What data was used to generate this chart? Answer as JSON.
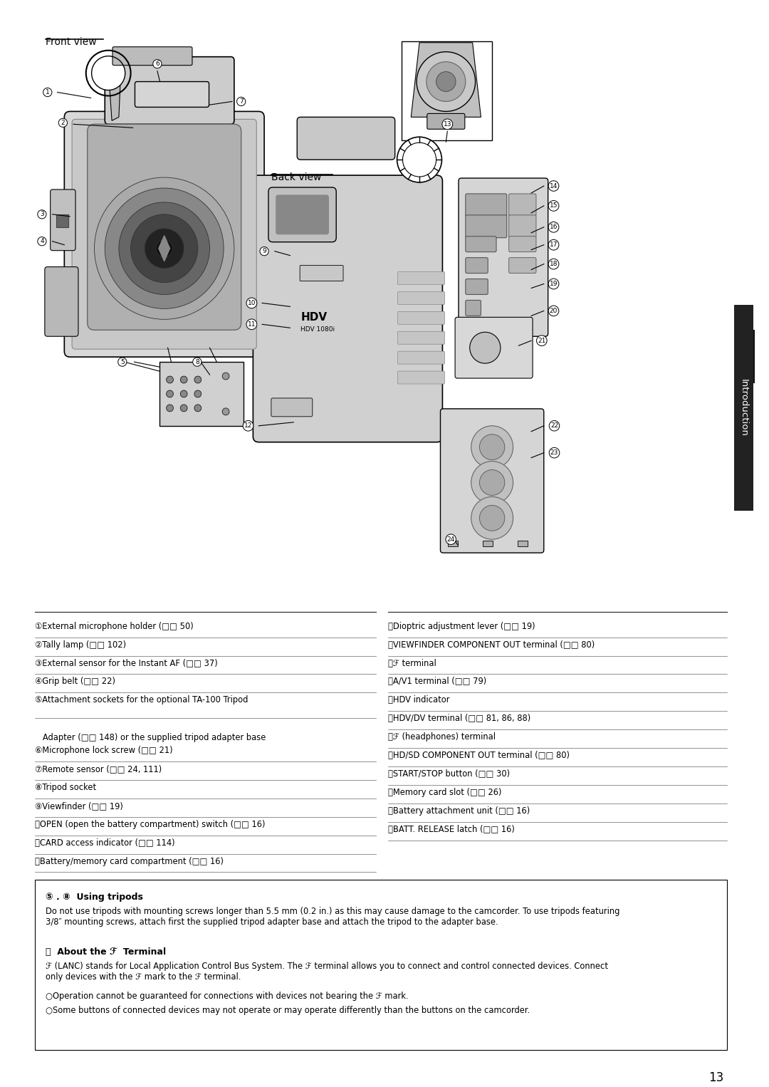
{
  "page_number": "13",
  "bg_color": "#ffffff",
  "front_view_label": "Front view",
  "back_view_label": "Back view",
  "left_items": [
    [
      "①",
      "External microphone holder (¤¤ 50)"
    ],
    [
      "②",
      "Tally lamp (¤¤ 102)"
    ],
    [
      "③",
      "External sensor for the Instant AF (¤¤ 37)"
    ],
    [
      "④",
      "Grip belt (¤¤ 22)"
    ],
    [
      "⑤",
      "Attachment sockets for the optional TA-100 Tripod"
    ],
    [
      "",
      "   Adapter (¤¤ 148) or the supplied tripod adapter base"
    ],
    [
      "⑥",
      "Microphone lock screw (¤¤ 21)"
    ],
    [
      "⑦",
      "Remote sensor (¤¤ 24, 111)"
    ],
    [
      "⑧",
      "Tripod socket"
    ],
    [
      "⑨",
      "Viewfinder (¤¤ 19)"
    ],
    [
      "⑪",
      "OPEN (open the battery compartment) switch (¤¤ 16)"
    ],
    [
      "⑫",
      "CARD access indicator (¤¤ 114)"
    ],
    [
      "⑬",
      "Battery/memory card compartment (¤¤ 16)"
    ]
  ],
  "right_items": [
    [
      "⑭",
      "Dioptric adjustment lever (¤¤ 19)"
    ],
    [
      "⑮",
      "VIEWFINDER COMPONENT OUT terminal (¤¤ 80)"
    ],
    [
      "⑯",
      "¤ terminal"
    ],
    [
      "⑰",
      "A/V1 terminal (¤¤ 79)"
    ],
    [
      "⑱",
      "HDV indicator"
    ],
    [
      "⑲",
      "HDV/DV terminal (¤¤ 81, 86, 88)"
    ],
    [
      "⑳",
      "¤ (headphones) terminal"
    ],
    [
      "⑴",
      "HD/SD COMPONENT OUT terminal (¤¤ 80)"
    ],
    [
      "⑵",
      "START/STOP button (¤¤ 30)"
    ],
    [
      "⑶",
      "Memory card slot (¤¤ 26)"
    ],
    [
      "⑷",
      "Battery attachment unit (¤¤ 16)"
    ],
    [
      "⑸",
      "BATT. RELEASE latch (¤¤ 16)"
    ]
  ],
  "note_tripods_title": "5 . 8  Using tripods",
  "note_tripods_body": "Do not use tripods with mounting screws longer than 5.5 mm (0.2 in.) as this may cause damage to the camcorder. To use tripods featuring\n3/8″ mounting screws, attach first the supplied tripod adapter base and attach the tripod to the adapter base.",
  "note_terminal_title": "15  About the   Terminal",
  "note_terminal_body1": "  (LANC) stands for Local Application Control Bus System. The   terminal allows you to connect and control connected devices. Connect\nonly devices with the   mark to the   terminal.",
  "note_terminal_body2": "○Operation cannot be guaranteed for connections with devices not bearing the   mark.",
  "note_terminal_body3": "○Some buttons of connected devices may not operate or may operate differently than the buttons on the camcorder."
}
